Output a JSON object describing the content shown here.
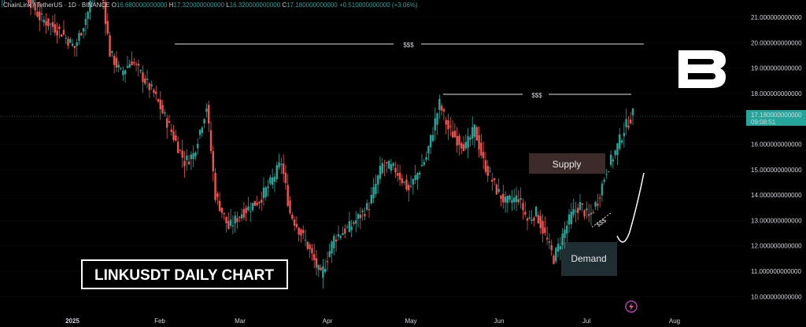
{
  "legend": {
    "symbol": "ChainLink / TetherUS · 1D · BINANCE",
    "o_label": "O",
    "o_value": "16.680000000000",
    "h_label": "H",
    "h_value": "17.320000000000",
    "l_label": "L",
    "l_value": "16.320000000000",
    "c_label": "C",
    "c_value": "17.180000000000",
    "change": "+0.510000000000 (+3.06%)"
  },
  "price_tag": {
    "value": "17.180000000000",
    "countdown": "09:08:51"
  },
  "annotations": {
    "liquidity_top": "$$$",
    "liquidity_mid": "$$$",
    "liquidity_low": "$$$",
    "supply": "Supply",
    "demand": "Demand",
    "chart_label": "LINKUSDT DAILY CHART"
  },
  "colors": {
    "up": "#26a69a",
    "down": "#ef5350",
    "background": "#000000",
    "supply_zone": "#3d2b2b",
    "demand_zone": "#1e2e33"
  },
  "chart_data": {
    "type": "candlestick",
    "title": "LINKUSDT DAILY CHART",
    "y_ticks": [
      "10.000000000000",
      "11.000000000000",
      "12.000000000000",
      "13.000000000000",
      "14.000000000000",
      "15.000000000000",
      "16.000000000000",
      "17.000000000000",
      "18.000000000000",
      "19.000000000000",
      "20.000000000000",
      "21.000000000000"
    ],
    "ylim": [
      9.85,
      21.3
    ],
    "x_labels": [
      "2025",
      "Feb",
      "Mar",
      "Apr",
      "May",
      "Jun",
      "Jul",
      "Aug"
    ],
    "last_close": 17.18,
    "levels": [
      {
        "label": "$$$",
        "price": 20.0
      },
      {
        "label": "$$$",
        "price": 18.0
      }
    ],
    "zones": [
      {
        "label": "Supply",
        "from": 14.9,
        "to": 15.6
      },
      {
        "label": "Demand",
        "from": 10.85,
        "to": 12.1
      }
    ]
  }
}
